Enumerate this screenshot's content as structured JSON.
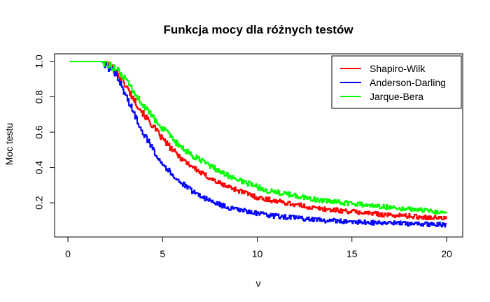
{
  "chart_data": {
    "type": "line",
    "title": "Funkcja mocy dla różnych testów",
    "xlabel": "ν",
    "ylabel": "Moc testu",
    "xlim": [
      0,
      20
    ],
    "ylim": [
      0.05,
      1.0
    ],
    "xticks": [
      0,
      5,
      10,
      15,
      20
    ],
    "yticks": [
      0.2,
      0.4,
      0.6,
      0.8,
      1.0
    ],
    "xtick_labels": [
      "0",
      "5",
      "10",
      "15",
      "20"
    ],
    "ytick_labels": [
      "0.2",
      "0.4",
      "0.6",
      "0.8",
      "1.0"
    ],
    "grid": false,
    "legend_position": "top-right",
    "series": [
      {
        "name": "Shapiro-Wilk",
        "color": "#ff0000",
        "x": [
          0.1,
          0.5,
          1.0,
          1.5,
          1.8,
          2.0,
          2.5,
          3.0,
          3.5,
          4.0,
          4.5,
          5.0,
          5.5,
          6.0,
          6.5,
          7.0,
          7.5,
          8.0,
          8.5,
          9.0,
          9.5,
          10.0,
          10.5,
          11.0,
          11.5,
          12.0,
          12.5,
          13.0,
          13.5,
          14.0,
          14.5,
          15.0,
          15.5,
          16.0,
          16.5,
          17.0,
          17.5,
          18.0,
          18.5,
          19.0,
          19.5,
          20.0
        ],
        "y": [
          1.0,
          1.0,
          1.0,
          1.0,
          1.0,
          0.99,
          0.95,
          0.87,
          0.78,
          0.7,
          0.63,
          0.56,
          0.5,
          0.45,
          0.41,
          0.37,
          0.34,
          0.31,
          0.29,
          0.27,
          0.25,
          0.23,
          0.22,
          0.21,
          0.2,
          0.19,
          0.18,
          0.17,
          0.165,
          0.16,
          0.155,
          0.15,
          0.145,
          0.14,
          0.135,
          0.13,
          0.128,
          0.125,
          0.12,
          0.118,
          0.115,
          0.11
        ]
      },
      {
        "name": "Anderson-Darling",
        "color": "#0000ff",
        "x": [
          0.1,
          0.5,
          1.0,
          1.5,
          1.8,
          2.0,
          2.5,
          3.0,
          3.5,
          4.0,
          4.5,
          5.0,
          5.5,
          6.0,
          6.5,
          7.0,
          7.5,
          8.0,
          8.5,
          9.0,
          9.5,
          10.0,
          10.5,
          11.0,
          11.5,
          12.0,
          12.5,
          13.0,
          13.5,
          14.0,
          14.5,
          15.0,
          15.5,
          16.0,
          16.5,
          17.0,
          17.5,
          18.0,
          18.5,
          19.0,
          19.5,
          20.0
        ],
        "y": [
          1.0,
          1.0,
          1.0,
          1.0,
          1.0,
          0.98,
          0.93,
          0.82,
          0.7,
          0.59,
          0.5,
          0.42,
          0.36,
          0.31,
          0.27,
          0.24,
          0.21,
          0.19,
          0.17,
          0.16,
          0.15,
          0.14,
          0.13,
          0.125,
          0.12,
          0.115,
          0.11,
          0.105,
          0.1,
          0.098,
          0.095,
          0.093,
          0.09,
          0.088,
          0.086,
          0.085,
          0.083,
          0.082,
          0.08,
          0.078,
          0.077,
          0.075
        ]
      },
      {
        "name": "Jarque-Bera",
        "color": "#00ff00",
        "x": [
          0.1,
          0.5,
          1.0,
          1.5,
          1.8,
          2.0,
          2.5,
          3.0,
          3.5,
          4.0,
          4.5,
          5.0,
          5.5,
          6.0,
          6.5,
          7.0,
          7.5,
          8.0,
          8.5,
          9.0,
          9.5,
          10.0,
          10.5,
          11.0,
          11.5,
          12.0,
          12.5,
          13.0,
          13.5,
          14.0,
          14.5,
          15.0,
          15.5,
          16.0,
          16.5,
          17.0,
          17.5,
          18.0,
          18.5,
          19.0,
          19.5,
          20.0
        ],
        "y": [
          1.0,
          1.0,
          1.0,
          1.0,
          1.0,
          0.99,
          0.96,
          0.9,
          0.82,
          0.75,
          0.68,
          0.62,
          0.56,
          0.51,
          0.47,
          0.44,
          0.41,
          0.38,
          0.35,
          0.33,
          0.31,
          0.29,
          0.27,
          0.26,
          0.25,
          0.24,
          0.23,
          0.22,
          0.21,
          0.205,
          0.2,
          0.195,
          0.19,
          0.185,
          0.18,
          0.175,
          0.17,
          0.165,
          0.16,
          0.155,
          0.15,
          0.14
        ]
      }
    ]
  }
}
